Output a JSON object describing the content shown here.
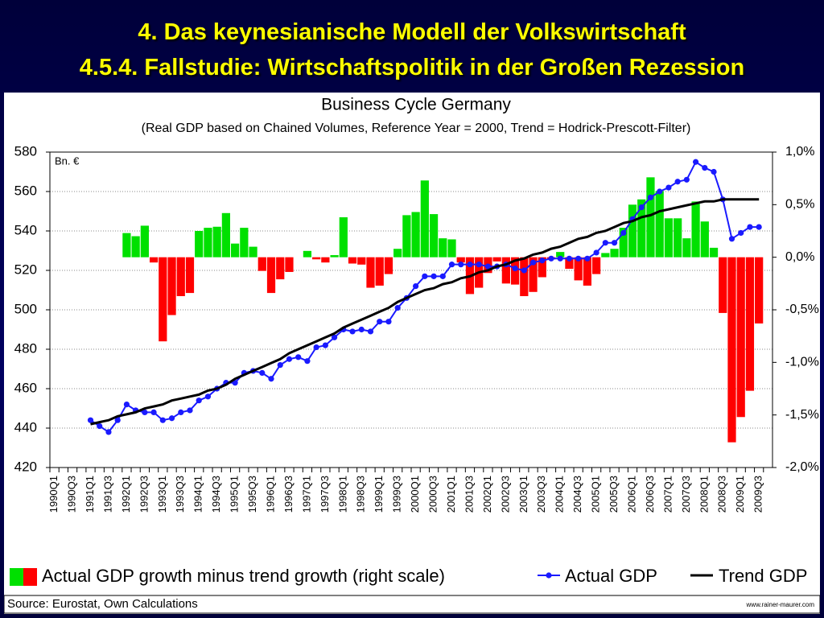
{
  "slide": {
    "title": "4. Das keynesianische Modell der Volkswirtschaft",
    "subtitle": "4.5.4.  Fallstudie: Wirtschaftspolitik in der Großen Rezession",
    "source": "Source: Eurostat, Own Calculations",
    "website": "www.rainer-maurer.com"
  },
  "chart_data": {
    "type": "combo",
    "title": "Business Cycle Germany",
    "subtitle": "(Real GDP based on Chained Volumes, Reference Year = 2000, Trend = Hodrick-Prescott-Filter)",
    "y_unit_label": "Bn. €",
    "categories": [
      "1990Q1",
      null,
      "1990Q3",
      null,
      "1991Q1",
      null,
      "1991Q3",
      null,
      "1992Q1",
      null,
      "1992Q3",
      null,
      "1993Q1",
      null,
      "1993Q3",
      null,
      "1994Q1",
      null,
      "1994Q3",
      null,
      "1995Q1",
      null,
      "1995Q3",
      null,
      "1996Q1",
      null,
      "1996Q3",
      null,
      "1997Q1",
      null,
      "1997Q3",
      null,
      "1998Q1",
      null,
      "1998Q3",
      null,
      "1999Q1",
      null,
      "1999Q3",
      null,
      "2000Q1",
      null,
      "2000Q3",
      null,
      "2001Q1",
      null,
      "2001Q3",
      null,
      "2002Q1",
      null,
      "2002Q3",
      null,
      "2003Q1",
      null,
      "2003Q3",
      null,
      "2004Q1",
      null,
      "2004Q3",
      null,
      "2005Q1",
      null,
      "2005Q3",
      null,
      "2006Q1",
      null,
      "2006Q3",
      null,
      "2007Q1",
      null,
      "2007Q3",
      null,
      "2008Q1",
      null,
      "2008Q3",
      null,
      "2009Q1",
      null,
      "2009Q3",
      null
    ],
    "ylim": [
      420,
      580
    ],
    "yticks": [
      420,
      440,
      460,
      480,
      500,
      520,
      540,
      560,
      580
    ],
    "y2lim": [
      -2.0,
      1.0
    ],
    "y2ticks": [
      {
        "value": -2.0,
        "label": "-2,0%"
      },
      {
        "value": -1.5,
        "label": "-1,5%"
      },
      {
        "value": -1.0,
        "label": "-1,0%"
      },
      {
        "value": -0.5,
        "label": "-0,5%"
      },
      {
        "value": 0.0,
        "label": "0,0%"
      },
      {
        "value": 0.5,
        "label": "0,5%"
      },
      {
        "value": 1.0,
        "label": "1,0%"
      }
    ],
    "grid": true,
    "series": [
      {
        "name": "Actual GDP growth minus trend growth (right scale)",
        "type": "bar",
        "axis": "y2",
        "color": "#00e000",
        "negative_color": "#ff0000",
        "values": [
          null,
          null,
          null,
          null,
          null,
          null,
          null,
          null,
          0.23,
          0.2,
          0.3,
          -0.05,
          -0.8,
          -0.55,
          -0.37,
          -0.34,
          0.25,
          0.28,
          0.29,
          0.42,
          0.13,
          0.28,
          0.1,
          -0.13,
          -0.34,
          -0.21,
          -0.14,
          0,
          0.06,
          -0.02,
          -0.05,
          0.02,
          0.38,
          -0.06,
          -0.07,
          -0.29,
          -0.27,
          -0.16,
          0.08,
          0.4,
          0.43,
          0.73,
          0.41,
          0.18,
          0.17,
          -0.05,
          -0.35,
          -0.29,
          -0.15,
          -0.04,
          -0.25,
          -0.26,
          -0.37,
          -0.33,
          -0.19,
          -0.02,
          0.05,
          -0.11,
          -0.22,
          -0.27,
          -0.16,
          0.04,
          0.08,
          0.28,
          0.5,
          0.55,
          0.76,
          0.63,
          0.37,
          0.37,
          0.18,
          0.53,
          0.34,
          0.09,
          -0.53,
          -1.76,
          -1.52,
          -1.27,
          -0.63,
          null
        ]
      },
      {
        "name": "Actual GDP",
        "type": "line",
        "marker": "circle",
        "color": "#1a1aff",
        "values": [
          null,
          null,
          null,
          null,
          444,
          441,
          438,
          444,
          452,
          449,
          448,
          448,
          444,
          445,
          448,
          449,
          454,
          456,
          460,
          463,
          463,
          468,
          469,
          468,
          465,
          472,
          475,
          476,
          474,
          481,
          482,
          486,
          490,
          489,
          490,
          489,
          494,
          494,
          501,
          506,
          512,
          517,
          517,
          517,
          523,
          523,
          523,
          523,
          522,
          522,
          523,
          521,
          520,
          524,
          525,
          526,
          526,
          526,
          526,
          526,
          529,
          534,
          534,
          539,
          546,
          552,
          557,
          560,
          562,
          565,
          566,
          575,
          572,
          570,
          556,
          536,
          539,
          542,
          542,
          null
        ]
      },
      {
        "name": "Trend GDP",
        "type": "line",
        "color": "#000000",
        "values": [
          null,
          null,
          null,
          null,
          442,
          443,
          444,
          446,
          447,
          448,
          450,
          451,
          452,
          454,
          455,
          456,
          457,
          459,
          460,
          462,
          465,
          467,
          469,
          471,
          473,
          475,
          478,
          480,
          482,
          484,
          486,
          488,
          491,
          493,
          495,
          497,
          499,
          501,
          504,
          506,
          508,
          510,
          511,
          513,
          514,
          516,
          517,
          519,
          520,
          522,
          523,
          525,
          526,
          528,
          529,
          531,
          532,
          534,
          536,
          537,
          539,
          540,
          542,
          544,
          545,
          547,
          548,
          550,
          551,
          552,
          553,
          554,
          555,
          555,
          556,
          556,
          556,
          556,
          556,
          null
        ]
      }
    ]
  }
}
